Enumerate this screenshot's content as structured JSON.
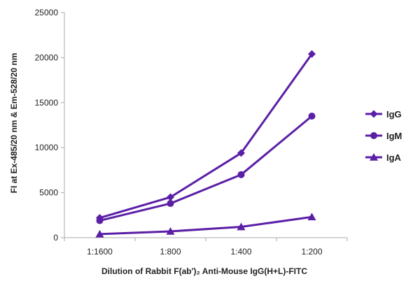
{
  "chart_data": {
    "type": "line",
    "categories": [
      "1:1600",
      "1:800",
      "1:400",
      "1:200"
    ],
    "series": [
      {
        "name": "IgG",
        "marker": "diamond",
        "values": [
          2200,
          4500,
          9400,
          20400
        ]
      },
      {
        "name": "IgM",
        "marker": "circle",
        "values": [
          1900,
          3800,
          7000,
          13500
        ]
      },
      {
        "name": "IgA",
        "marker": "triangle",
        "values": [
          400,
          700,
          1200,
          2300
        ]
      }
    ],
    "xlabel": "Dilution of Rabbit F(ab')₂ Anti-Mouse IgG(H+L)-FITC",
    "ylabel": "FI at Ex-485/20 nm & Em-528/20 nm",
    "ylim": [
      0,
      25000
    ],
    "yticks": [
      0,
      5000,
      10000,
      15000,
      20000,
      25000
    ],
    "grid": false,
    "legend": "right",
    "colors": {
      "series": "#5b1fa6",
      "axis": "#aaaaaa"
    }
  }
}
